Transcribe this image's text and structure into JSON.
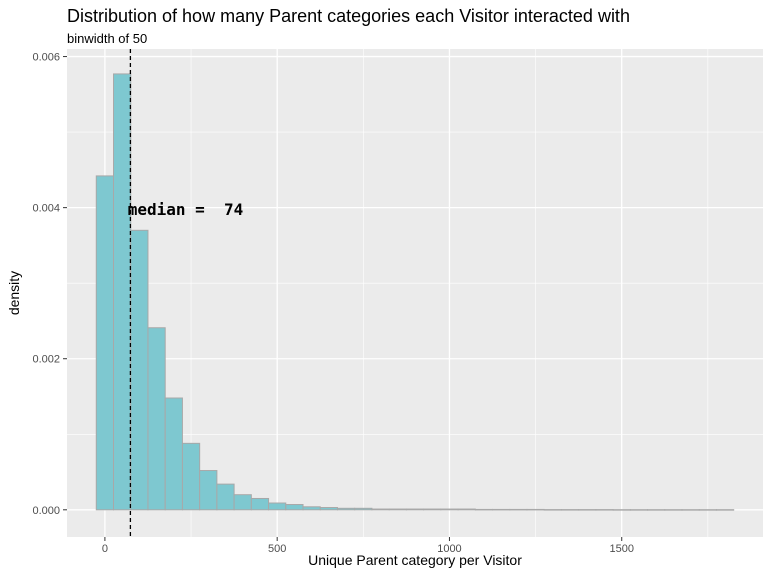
{
  "chart_data": {
    "type": "bar",
    "title": "Distribution of how many Parent categories each Visitor interacted with",
    "subtitle": "binwidth of 50",
    "xlabel": "Unique Parent category per Visitor",
    "ylabel": "density",
    "binwidth": 50,
    "xlim": [
      -110,
      1910
    ],
    "ylim": [
      -0.00036,
      0.0061
    ],
    "x_ticks": [
      0,
      500,
      1000,
      1500
    ],
    "y_ticks": [
      0.0,
      0.002,
      0.004,
      0.006
    ],
    "x_tick_labels": [
      "0",
      "500",
      "1000",
      "1500"
    ],
    "y_tick_labels": [
      "0.000",
      "0.002",
      "0.004",
      "0.006"
    ],
    "bins": [
      {
        "x": 0,
        "density": 0.00442
      },
      {
        "x": 50,
        "density": 0.00577
      },
      {
        "x": 100,
        "density": 0.0037
      },
      {
        "x": 150,
        "density": 0.00241
      },
      {
        "x": 200,
        "density": 0.00148
      },
      {
        "x": 250,
        "density": 0.00088
      },
      {
        "x": 300,
        "density": 0.00052
      },
      {
        "x": 350,
        "density": 0.00034
      },
      {
        "x": 400,
        "density": 0.0002
      },
      {
        "x": 450,
        "density": 0.00015
      },
      {
        "x": 500,
        "density": 9e-05
      },
      {
        "x": 550,
        "density": 7e-05
      },
      {
        "x": 600,
        "density": 4e-05
      },
      {
        "x": 650,
        "density": 3e-05
      },
      {
        "x": 700,
        "density": 2e-05
      },
      {
        "x": 750,
        "density": 2e-05
      },
      {
        "x": 800,
        "density": 1e-05
      },
      {
        "x": 850,
        "density": 1e-05
      },
      {
        "x": 900,
        "density": 1e-05
      },
      {
        "x": 950,
        "density": 1e-05
      },
      {
        "x": 1000,
        "density": 1e-05
      },
      {
        "x": 1050,
        "density": 1e-05
      },
      {
        "x": 1100,
        "density": 5e-06
      },
      {
        "x": 1150,
        "density": 5e-06
      },
      {
        "x": 1200,
        "density": 5e-06
      },
      {
        "x": 1250,
        "density": 5e-06
      },
      {
        "x": 1300,
        "density": 3e-06
      },
      {
        "x": 1350,
        "density": 3e-06
      },
      {
        "x": 1400,
        "density": 3e-06
      },
      {
        "x": 1450,
        "density": 3e-06
      },
      {
        "x": 1500,
        "density": 2e-06
      },
      {
        "x": 1550,
        "density": 2e-06
      },
      {
        "x": 1600,
        "density": 2e-06
      },
      {
        "x": 1650,
        "density": 2e-06
      },
      {
        "x": 1700,
        "density": 2e-06
      },
      {
        "x": 1750,
        "density": 2e-06
      },
      {
        "x": 1800,
        "density": 2e-06
      }
    ],
    "median": 74,
    "annotation": {
      "text": "median =  74",
      "x": 234,
      "y": 0.00397
    },
    "grid": true,
    "colors": {
      "bar_fill": "#7ec8d0",
      "bar_outline": "#a8a8a8",
      "panel_bg": "#ebebeb",
      "grid": "#ffffff",
      "median_line": "#000000"
    }
  }
}
